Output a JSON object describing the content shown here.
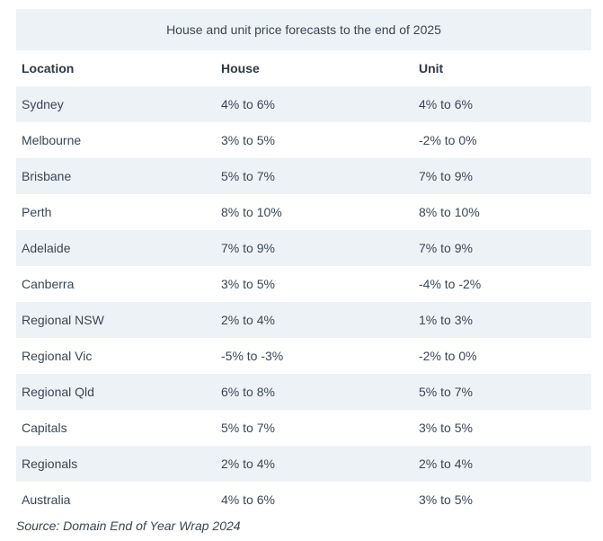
{
  "table": {
    "caption": "House and unit price forecasts to the end of 2025",
    "headers": [
      "Location",
      "House",
      "Unit"
    ],
    "rows": [
      [
        "Sydney",
        "4% to 6%",
        "4% to 6%"
      ],
      [
        "Melbourne",
        "3% to 5%",
        "-2% to 0%"
      ],
      [
        "Brisbane",
        "5% to 7%",
        "7% to 9%"
      ],
      [
        "Perth",
        "8% to 10%",
        "8% to 10%"
      ],
      [
        "Adelaide",
        "7% to 9%",
        "7% to 9%"
      ],
      [
        "Canberra",
        "3% to 5%",
        "-4% to -2%"
      ],
      [
        "Regional NSW",
        "2% to 4%",
        "1% to 3%"
      ],
      [
        "Regional Vic",
        "-5% to -3%",
        "-2% to 0%"
      ],
      [
        "Regional Qld",
        "6% to 8%",
        "5% to 7%"
      ],
      [
        "Capitals",
        "5% to 7%",
        "3% to 5%"
      ],
      [
        "Regionals",
        "2% to 4%",
        "2% to 4%"
      ],
      [
        "Australia",
        "4% to 6%",
        "3% to 5%"
      ]
    ]
  },
  "source": "Source: Domain End of Year Wrap 2024",
  "colors": {
    "stripe": "#edf2f7",
    "text": "#3a4654"
  }
}
